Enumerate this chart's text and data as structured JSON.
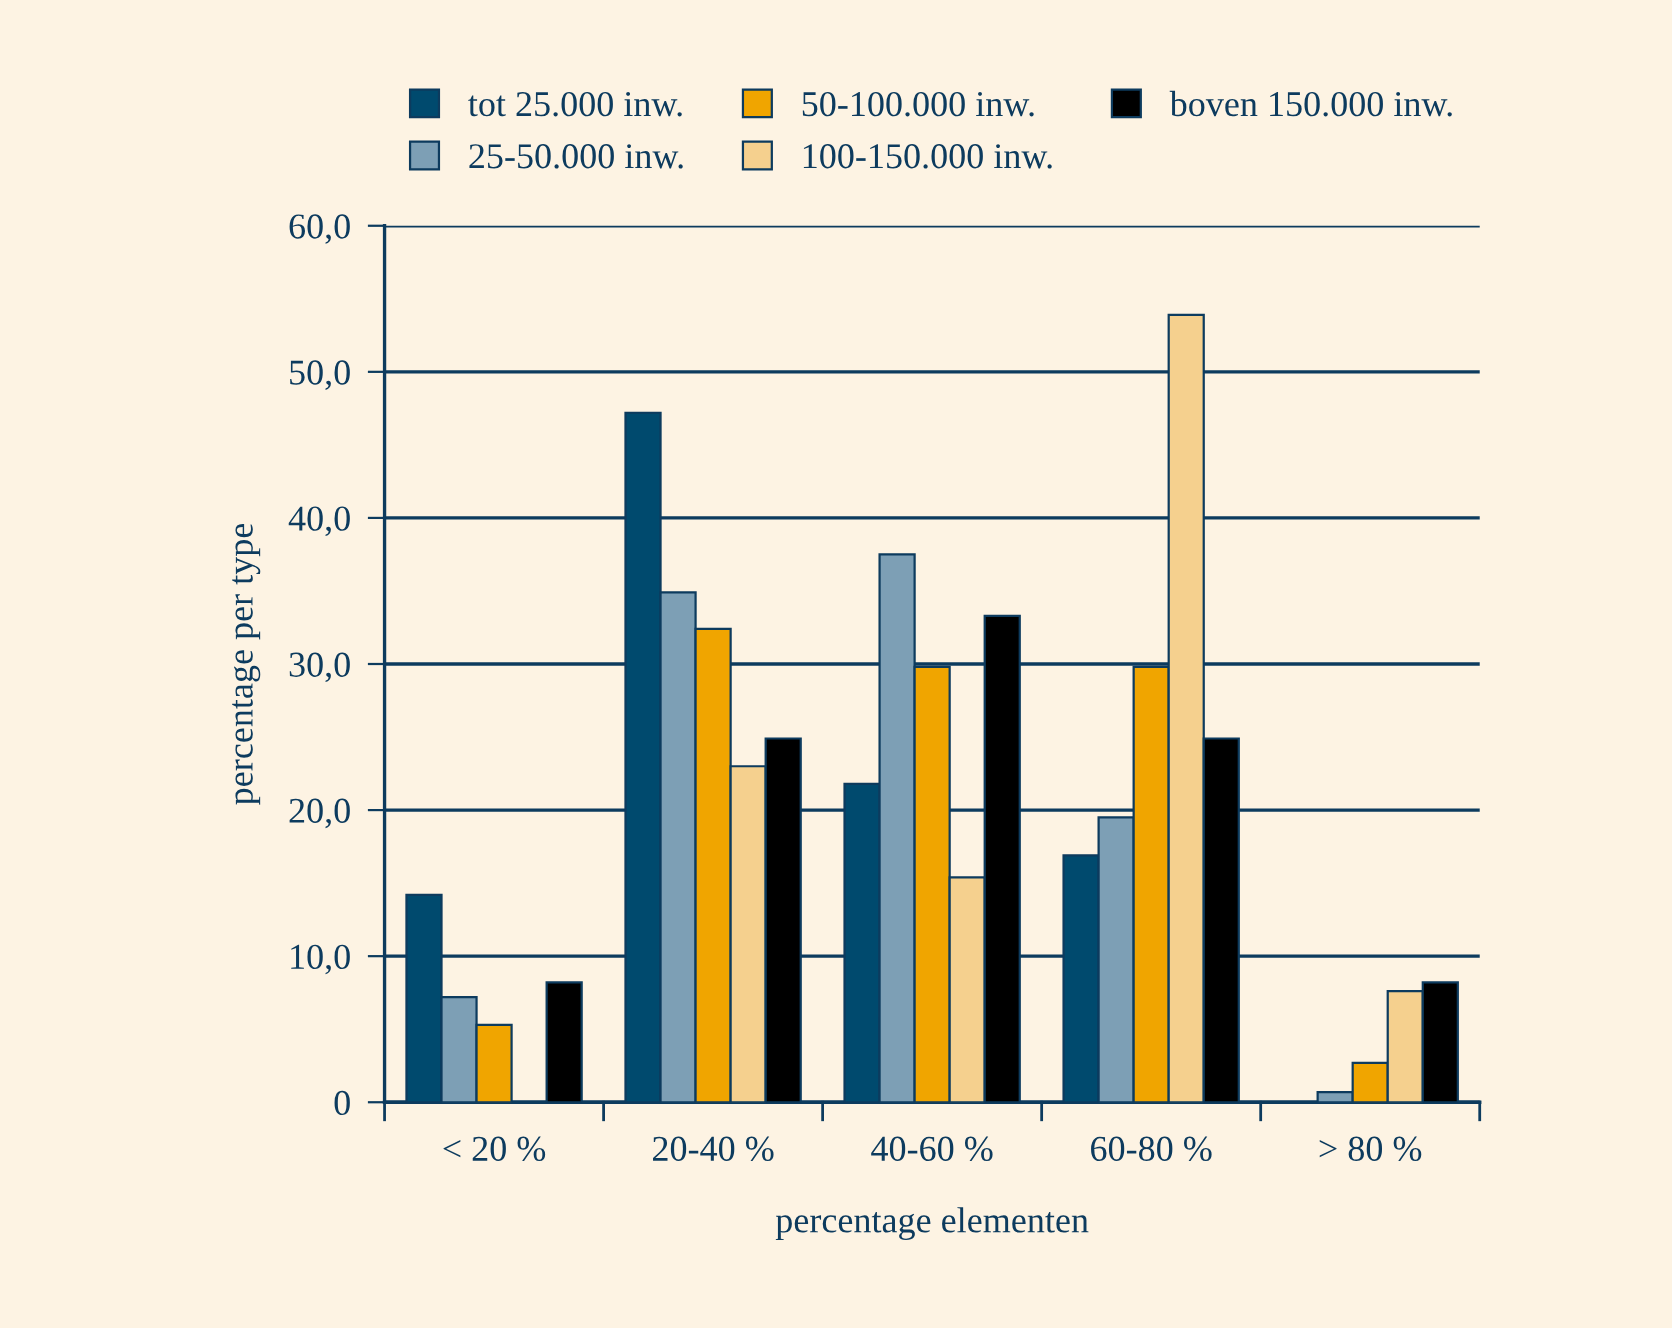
{
  "chart_data": {
    "type": "bar",
    "xlabel": "percentage elementen",
    "ylabel": "percentage per type",
    "categories": [
      "< 20 %",
      "20-40 %",
      "40-60 %",
      "60-80 %",
      "> 80 %"
    ],
    "series": [
      {
        "name": "tot 25.000 inw.",
        "color": "#004a6e",
        "values": [
          14.2,
          47.2,
          21.8,
          16.9,
          null
        ]
      },
      {
        "name": "25-50.000 inw.",
        "color": "#7d9fb5",
        "values": [
          7.2,
          34.9,
          37.5,
          19.5,
          0.7
        ]
      },
      {
        "name": "50-100.000 inw.",
        "color": "#f0a500",
        "values": [
          5.3,
          32.4,
          29.8,
          29.8,
          2.7
        ]
      },
      {
        "name": "100-150.000 inw.",
        "color": "#f5d08e",
        "values": [
          null,
          23.0,
          15.4,
          53.9,
          7.6
        ]
      },
      {
        "name": "boven 150.000 inw.",
        "color": "#000000",
        "values": [
          8.2,
          24.9,
          33.3,
          24.9,
          8.2
        ]
      }
    ],
    "ylim": [
      0,
      60
    ],
    "yticks": [
      0,
      {
        "value": 10,
        "label": "10,0"
      },
      {
        "value": 20,
        "label": "20,0"
      },
      {
        "value": 30,
        "label": "30,0"
      },
      {
        "value": 40,
        "label": "40,0"
      },
      {
        "value": 50,
        "label": "50,0"
      },
      {
        "value": 60,
        "label": "60,0"
      }
    ],
    "grid": "y",
    "legend": "top"
  }
}
